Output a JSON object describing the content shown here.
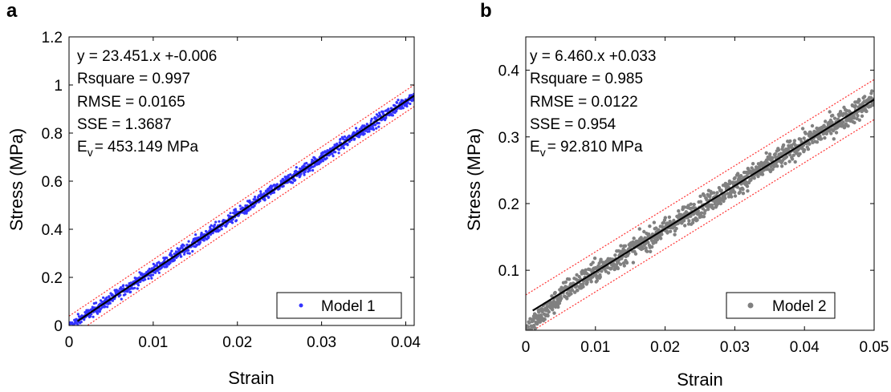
{
  "panels": [
    {
      "letter": "a",
      "stats": {
        "eq": "y = 23.451.x +-0.006",
        "rsq": "Rsquare = 0.997",
        "rmse": "RMSE = 0.0165",
        "sse": "SSE = 1.3687",
        "ev_main": "E",
        "ev_sub": "v",
        "ev_value": "= 453.149 MPa"
      }
    },
    {
      "letter": "b",
      "stats": {
        "eq": "y = 6.460.x +0.033",
        "rsq": "Rsquare = 0.985",
        "rmse": "RMSE = 0.0122",
        "sse": "SSE = 0.954",
        "ev_main": "E",
        "ev_sub": "v",
        "ev_value": "= 92.810 MPa"
      }
    }
  ],
  "chart_data": [
    {
      "type": "scatter",
      "xlabel": "Strain",
      "ylabel": "Stress (MPa)",
      "xlim": [
        0,
        0.041
      ],
      "ylim": [
        0,
        1.2
      ],
      "xticks": [
        0,
        0.01,
        0.02,
        0.03,
        0.04
      ],
      "xtick_labels": [
        "0",
        "0.01",
        "0.02",
        "0.03",
        "0.04"
      ],
      "yticks": [
        0,
        0.2,
        0.4,
        0.6,
        0.8,
        1,
        1.2
      ],
      "ytick_labels": [
        "0",
        "0.2",
        "0.4",
        "0.6",
        "0.8",
        "1",
        "1.2"
      ],
      "grid": false,
      "legend_position": "bottom-right",
      "series": [
        {
          "name": "Model 1",
          "kind": "points",
          "color": "#3333ff",
          "x_range": [
            0,
            0.041
          ],
          "trend": {
            "slope": 23.451,
            "intercept": -0.006
          },
          "noise": 0.012
        }
      ],
      "fit_line": {
        "color": "#000000",
        "slope": 23.451,
        "intercept": -0.006,
        "x_range": [
          0.001,
          0.041
        ]
      },
      "bounds": {
        "color": "#ff3333",
        "offset": 0.045,
        "x_range": [
          0,
          0.041
        ]
      }
    },
    {
      "type": "scatter",
      "xlabel": "Strain",
      "ylabel": "Stress (MPa)",
      "xlim": [
        0,
        0.05
      ],
      "ylim": [
        0.01,
        0.45
      ],
      "xticks": [
        0,
        0.01,
        0.02,
        0.03,
        0.04,
        0.05
      ],
      "xtick_labels": [
        "0",
        "0.01",
        "0.02",
        "0.03",
        "0.04",
        "0.05"
      ],
      "yticks": [
        0.1,
        0.2,
        0.3,
        0.4
      ],
      "ytick_labels": [
        "0.1",
        "0.2",
        "0.3",
        "0.4"
      ],
      "grid": false,
      "legend_position": "bottom-right",
      "series": [
        {
          "name": "Model 2",
          "kind": "points",
          "color": "#808080",
          "x_range": [
            0,
            0.05
          ],
          "trend": {
            "slope": 6.46,
            "intercept": 0.033
          },
          "noise": 0.008
        }
      ],
      "fit_line": {
        "color": "#000000",
        "slope": 6.46,
        "intercept": 0.033,
        "x_range": [
          0.001,
          0.05
        ]
      },
      "bounds": {
        "color": "#ff3333",
        "offset": 0.03,
        "x_range": [
          0,
          0.05
        ]
      }
    }
  ]
}
